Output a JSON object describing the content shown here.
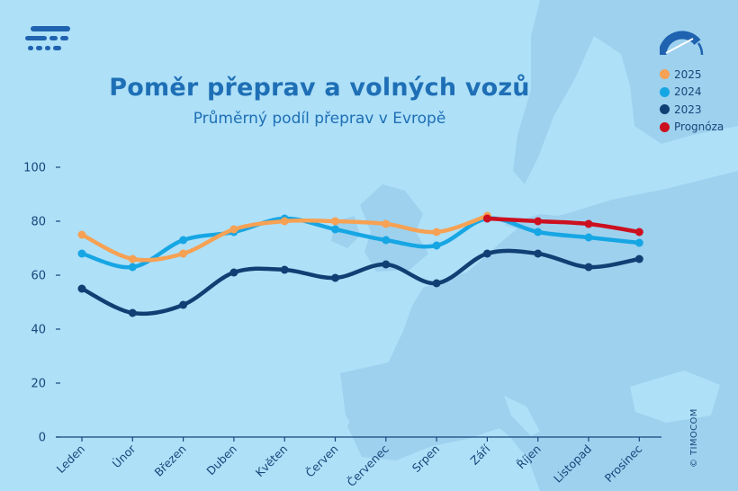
{
  "title": "Poměr přeprav a volných vozů",
  "subtitle": "Průměrný podíl přeprav v Evropě",
  "copyright": "© TIMOCOM",
  "colors": {
    "background": "#aee0f8",
    "map": "#9dd1ee",
    "axis": "#17467a",
    "title": "#1e6fb5",
    "logo": "#1f62b0"
  },
  "legend": [
    {
      "label": "2025",
      "color": "#f6a153"
    },
    {
      "label": "2024",
      "color": "#17a6e4"
    },
    {
      "label": "2023",
      "color": "#113f73"
    },
    {
      "label": "Prognóza",
      "color": "#cc1020"
    }
  ],
  "chart_data": {
    "type": "line",
    "title": "Poměr přeprav a volných vozů",
    "subtitle": "Průměrný podíl přeprav v Evropě",
    "xlabel": "",
    "ylabel": "",
    "ylim": [
      0,
      100
    ],
    "yticks": [
      0,
      20,
      40,
      60,
      80,
      100
    ],
    "grid": false,
    "legend_position": "top-right",
    "categories": [
      "Leden",
      "Únor",
      "Březen",
      "Duben",
      "Květen",
      "Červen",
      "Červenec",
      "Srpen",
      "Září",
      "Říjen",
      "Listopad",
      "Prosinec"
    ],
    "series": [
      {
        "name": "2023",
        "color": "#113f73",
        "values": [
          55,
          46,
          49,
          61,
          62,
          59,
          64,
          57,
          68,
          68,
          63,
          66
        ]
      },
      {
        "name": "2024",
        "color": "#17a6e4",
        "values": [
          68,
          63,
          73,
          76,
          81,
          77,
          73,
          71,
          81,
          76,
          74,
          72
        ]
      },
      {
        "name": "2025",
        "color": "#f6a153",
        "values": [
          75,
          66,
          68,
          77,
          80,
          80,
          79,
          76,
          82,
          null,
          null,
          null
        ]
      },
      {
        "name": "Prognóza",
        "color": "#cc1020",
        "values": [
          null,
          null,
          null,
          null,
          null,
          null,
          null,
          null,
          81,
          80,
          79,
          76
        ]
      }
    ]
  }
}
